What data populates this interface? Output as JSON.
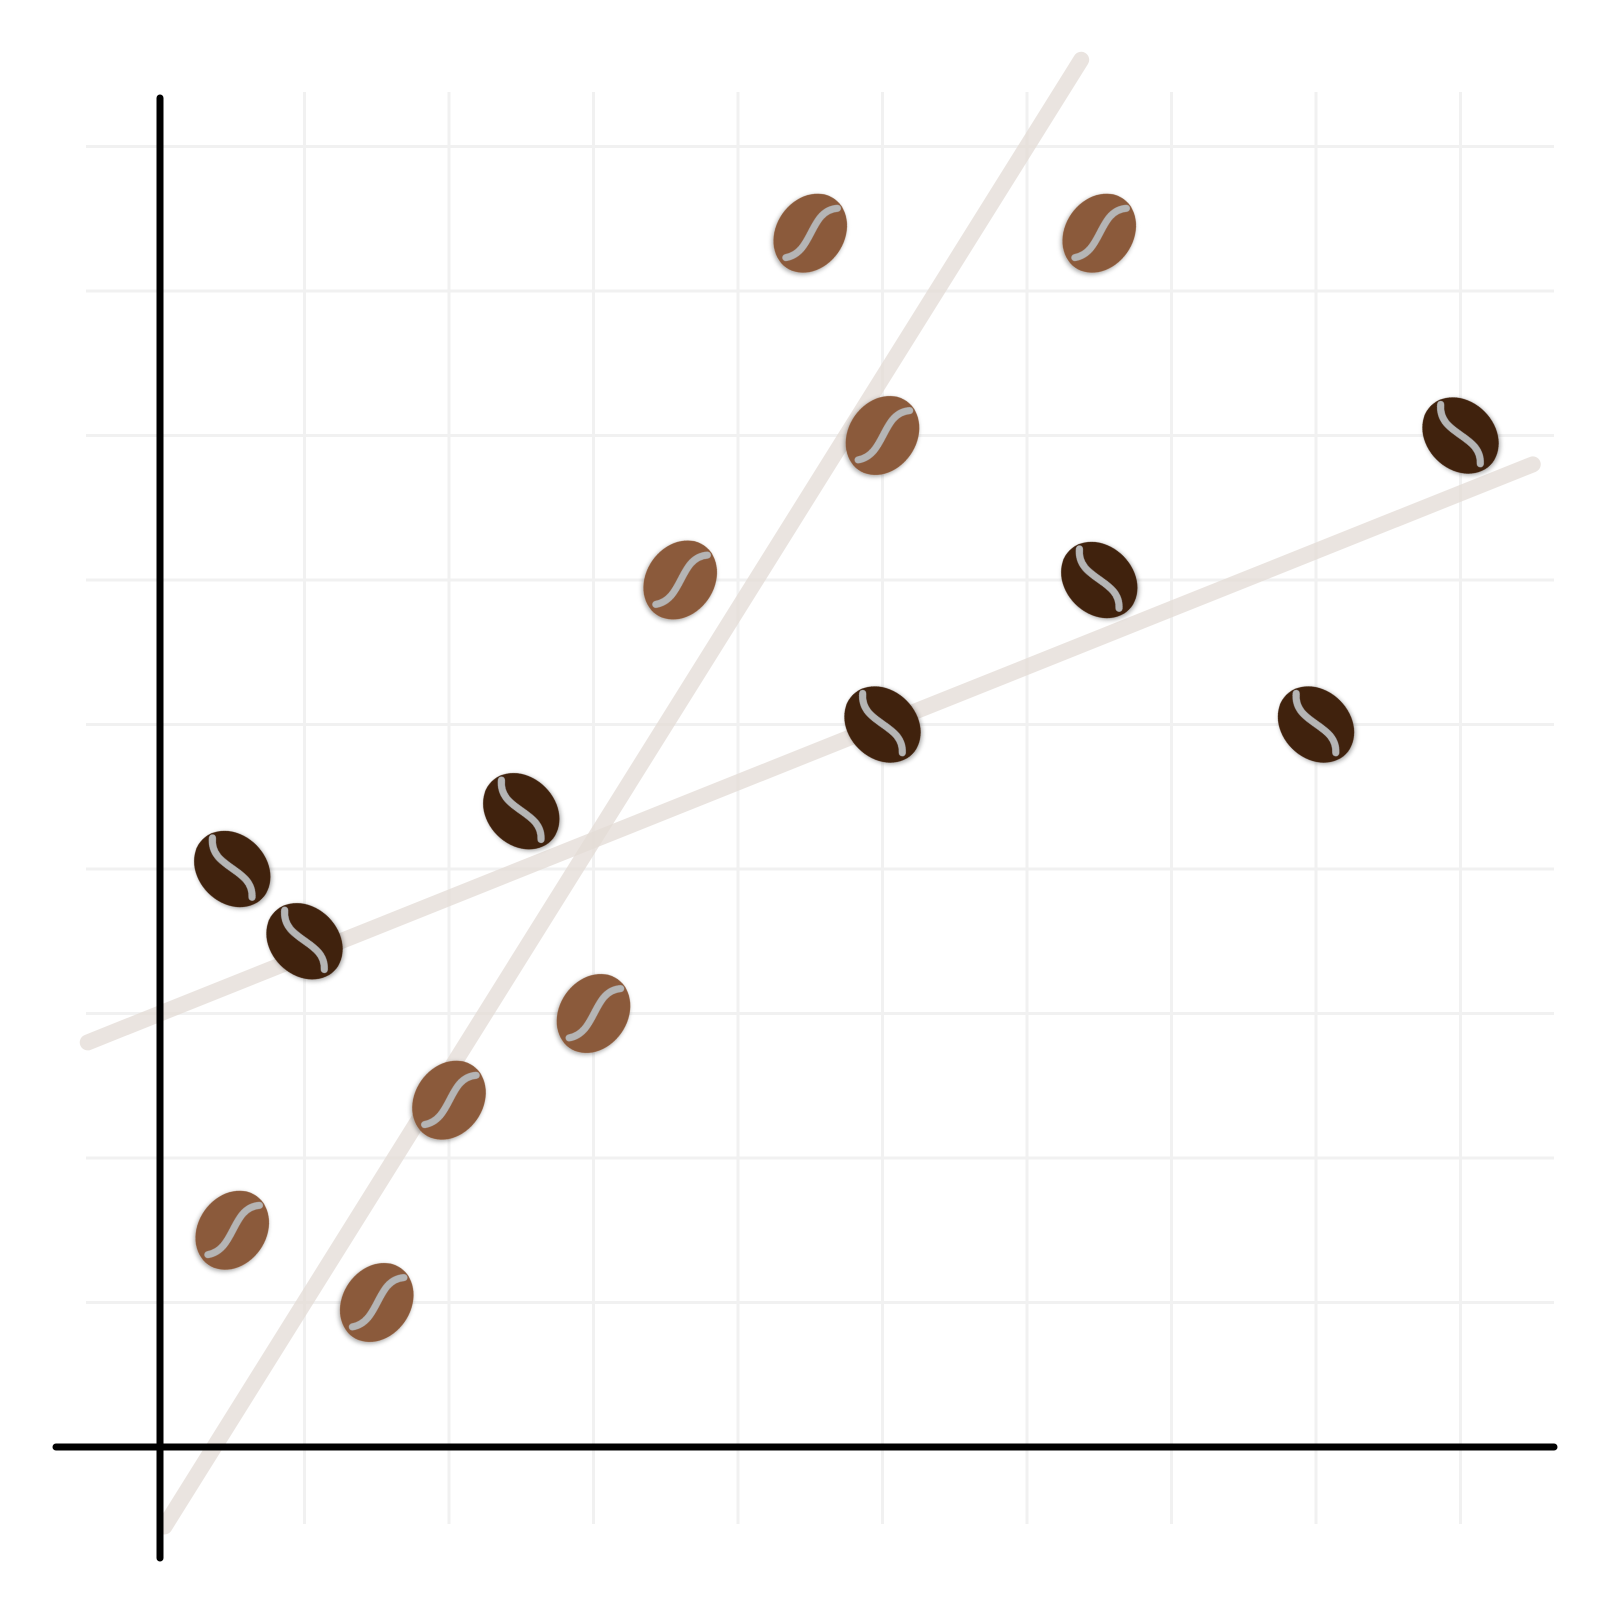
{
  "chart_data": {
    "type": "scatter",
    "title": "",
    "xlabel": "",
    "ylabel": "",
    "xlim": [
      -0.5,
      9.5
    ],
    "ylim": [
      -0.5,
      9.5
    ],
    "grid": true,
    "colors": {
      "background": "#ffffff",
      "grid": "#f1f1f1",
      "axis": "#000000",
      "trendline": "#e4dcd6",
      "series_a": "#8b5a3a",
      "series_b": "#3f220f",
      "crease": "#b5b5b5"
    },
    "marker_icon": "coffee-bean-icon",
    "series": [
      {
        "marker_color": "#8b5a3a",
        "trend": {
          "slope": 1.6,
          "intercept": -0.6
        },
        "points": [
          {
            "x": 0.5,
            "y": 1.5
          },
          {
            "x": 1.5,
            "y": 1.0
          },
          {
            "x": 2.0,
            "y": 2.4
          },
          {
            "x": 3.0,
            "y": 3.0
          },
          {
            "x": 3.6,
            "y": 6.0
          },
          {
            "x": 4.5,
            "y": 8.4
          },
          {
            "x": 5.0,
            "y": 7.0
          },
          {
            "x": 6.5,
            "y": 8.4
          }
        ]
      },
      {
        "marker_color": "#3f220f",
        "trend": {
          "slope": 0.4,
          "intercept": 3.0
        },
        "points": [
          {
            "x": 0.5,
            "y": 4.0
          },
          {
            "x": 1.0,
            "y": 3.5
          },
          {
            "x": 2.5,
            "y": 4.4
          },
          {
            "x": 5.0,
            "y": 5.0
          },
          {
            "x": 6.5,
            "y": 6.0
          },
          {
            "x": 8.0,
            "y": 5.0
          },
          {
            "x": 9.0,
            "y": 7.0
          }
        ]
      }
    ]
  }
}
